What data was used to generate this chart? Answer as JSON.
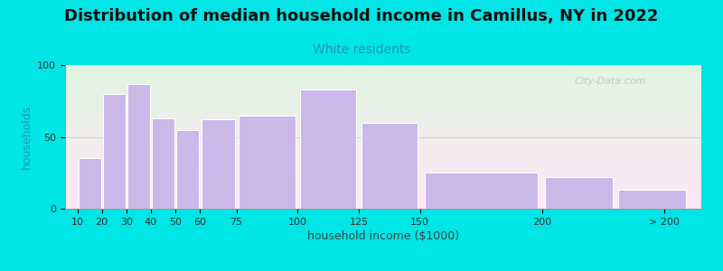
{
  "title": "Distribution of median household income in Camillus, NY in 2022",
  "subtitle": "White residents",
  "xlabel": "household income ($1000)",
  "ylabel": "households",
  "bar_color": "#c9b8e8",
  "bar_edge_color": "#ffffff",
  "background_color": "#00e5e5",
  "title_fontsize": 13,
  "subtitle_color": "#2299bb",
  "subtitle_fontsize": 10,
  "ylabel_color": "#2299bb",
  "ylim": [
    0,
    100
  ],
  "yticks": [
    0,
    50,
    100
  ],
  "watermark": "City-Data.com",
  "bin_left": [
    10,
    20,
    30,
    40,
    50,
    60,
    75,
    100,
    125,
    150,
    200,
    230
  ],
  "bin_right": [
    20,
    30,
    40,
    50,
    60,
    75,
    100,
    125,
    150,
    200,
    230,
    260
  ],
  "values": [
    35,
    80,
    87,
    63,
    55,
    62,
    65,
    83,
    60,
    25,
    22,
    13
  ],
  "xtick_pos": [
    10,
    20,
    30,
    40,
    50,
    60,
    75,
    100,
    125,
    150,
    200,
    250
  ],
  "xtick_labels": [
    "10",
    "20",
    "30",
    "40",
    "50",
    "60",
    "75",
    "100",
    "125",
    "150",
    "200",
    "> 200"
  ]
}
